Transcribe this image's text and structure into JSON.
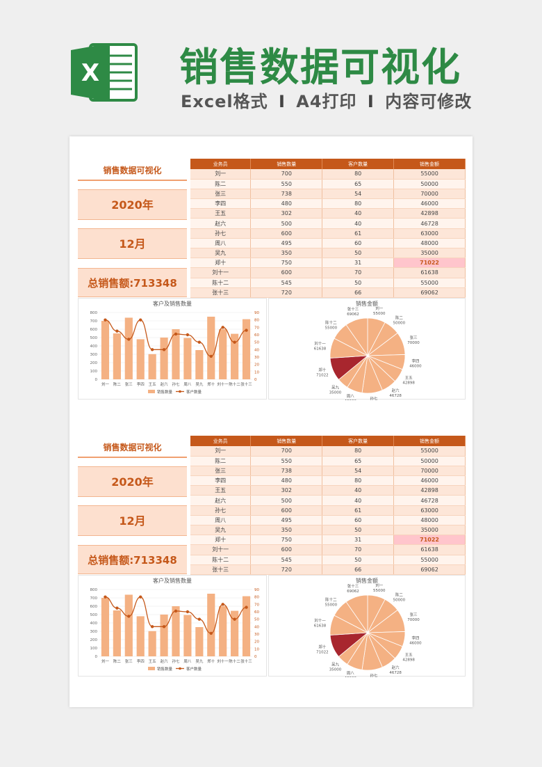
{
  "header": {
    "title": "销售数据可视化",
    "subtitle_parts": [
      "Excel格式",
      "I",
      "A4打印",
      "I",
      "内容可修改"
    ],
    "logo_letter": "X",
    "colors": {
      "brand_green": "#2e8a45",
      "accent_orange": "#c5581a",
      "bar": "#f4b183",
      "line": "#c5581a",
      "highlight": "#ffc5cc"
    }
  },
  "sections": [
    {
      "panel_title": "销售数据可视化",
      "year": "2020年",
      "month": "12月",
      "total": "总销售额:713348"
    },
    {
      "panel_title": "销售数据可视化",
      "year": "2020年",
      "month": "12月",
      "total": "总销售额:713348"
    }
  ],
  "table": {
    "headers": [
      "业务员",
      "销售数量",
      "客户数量",
      "销售金额"
    ],
    "rows": [
      [
        "刘一",
        "700",
        "80",
        "55000"
      ],
      [
        "陈二",
        "550",
        "65",
        "50000"
      ],
      [
        "张三",
        "738",
        "54",
        "70000"
      ],
      [
        "李四",
        "480",
        "80",
        "46000"
      ],
      [
        "王五",
        "302",
        "40",
        "42898"
      ],
      [
        "赵六",
        "500",
        "40",
        "46728"
      ],
      [
        "孙七",
        "600",
        "61",
        "63000"
      ],
      [
        "周八",
        "495",
        "60",
        "48000"
      ],
      [
        "吴九",
        "350",
        "50",
        "35000"
      ],
      [
        "郑十",
        "750",
        "31",
        "71022"
      ],
      [
        "刘十一",
        "600",
        "70",
        "61638"
      ],
      [
        "陈十二",
        "545",
        "50",
        "55000"
      ],
      [
        "张十三",
        "720",
        "66",
        "69062"
      ]
    ],
    "highlight_row": 9
  },
  "chart_data": [
    {
      "type": "bar",
      "title": "客户及销售数量",
      "categories": [
        "刘一",
        "陈二",
        "张三",
        "李四",
        "王五",
        "赵六",
        "孙七",
        "周八",
        "吴九",
        "郑十",
        "刘十一",
        "陈十二",
        "张十三"
      ],
      "series": [
        {
          "name": "销售数量",
          "type": "bar",
          "axis": "left",
          "values": [
            700,
            550,
            738,
            480,
            302,
            500,
            600,
            495,
            350,
            750,
            600,
            545,
            720
          ]
        },
        {
          "name": "客户数量",
          "type": "line",
          "axis": "right",
          "values": [
            80,
            65,
            54,
            80,
            40,
            40,
            61,
            60,
            50,
            31,
            70,
            50,
            66
          ]
        }
      ],
      "ylim": [
        0,
        800
      ],
      "y_ticks": [
        "0",
        "100",
        "200",
        "300",
        "400",
        "500",
        "600",
        "700",
        "800"
      ],
      "y2lim": [
        0,
        90
      ],
      "y2_ticks": [
        "0",
        "10",
        "20",
        "30",
        "40",
        "50",
        "60",
        "70",
        "80",
        "90"
      ],
      "legend_position": "bottom"
    },
    {
      "type": "pie",
      "title": "销售金额",
      "categories": [
        "刘一",
        "陈二",
        "张三",
        "李四",
        "王五",
        "赵六",
        "孙七",
        "周八",
        "吴九",
        "郑十",
        "刘十一",
        "陈十二",
        "张十三"
      ],
      "values": [
        55000,
        50000,
        70000,
        46000,
        42898,
        46728,
        63000,
        48000,
        35000,
        71022,
        61638,
        55000,
        69062
      ],
      "highlight_index": 9
    }
  ]
}
